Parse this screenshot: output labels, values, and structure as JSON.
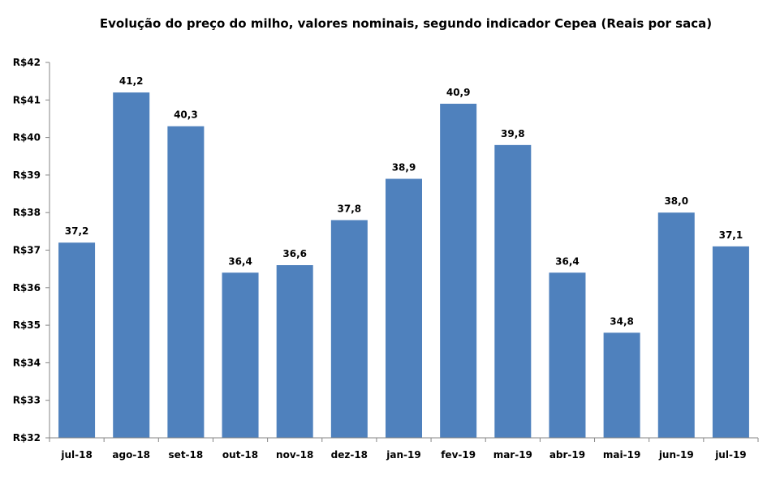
{
  "chart_data": {
    "type": "bar",
    "title": "Evolução do preço do milho, valores nominais, segundo indicador Cepea (Reais por saca)",
    "xlabel": "",
    "ylabel": "",
    "categories": [
      "jul-18",
      "ago-18",
      "set-18",
      "out-18",
      "nov-18",
      "dez-18",
      "jan-19",
      "fev-19",
      "mar-19",
      "abr-19",
      "mai-19",
      "jun-19",
      "jul-19"
    ],
    "values": [
      37.2,
      41.2,
      40.3,
      36.4,
      36.6,
      37.8,
      38.9,
      40.9,
      39.8,
      36.4,
      34.8,
      38.0,
      37.1
    ],
    "data_labels": [
      "37,2",
      "41,2",
      "40,3",
      "36,4",
      "36,6",
      "37,8",
      "38,9",
      "40,9",
      "39,8",
      "36,4",
      "34,8",
      "38,0",
      "37,1"
    ],
    "ylim": [
      32,
      42
    ],
    "yticks": [
      32,
      33,
      34,
      35,
      36,
      37,
      38,
      39,
      40,
      41,
      42
    ],
    "ytick_labels": [
      "R$32",
      "R$33",
      "R$34",
      "R$35",
      "R$36",
      "R$37",
      "R$38",
      "R$39",
      "R$40",
      "R$41",
      "R$42"
    ],
    "grid": false,
    "legend": "none",
    "bar_color": "#4F81BD",
    "axis_color": "#868686"
  }
}
